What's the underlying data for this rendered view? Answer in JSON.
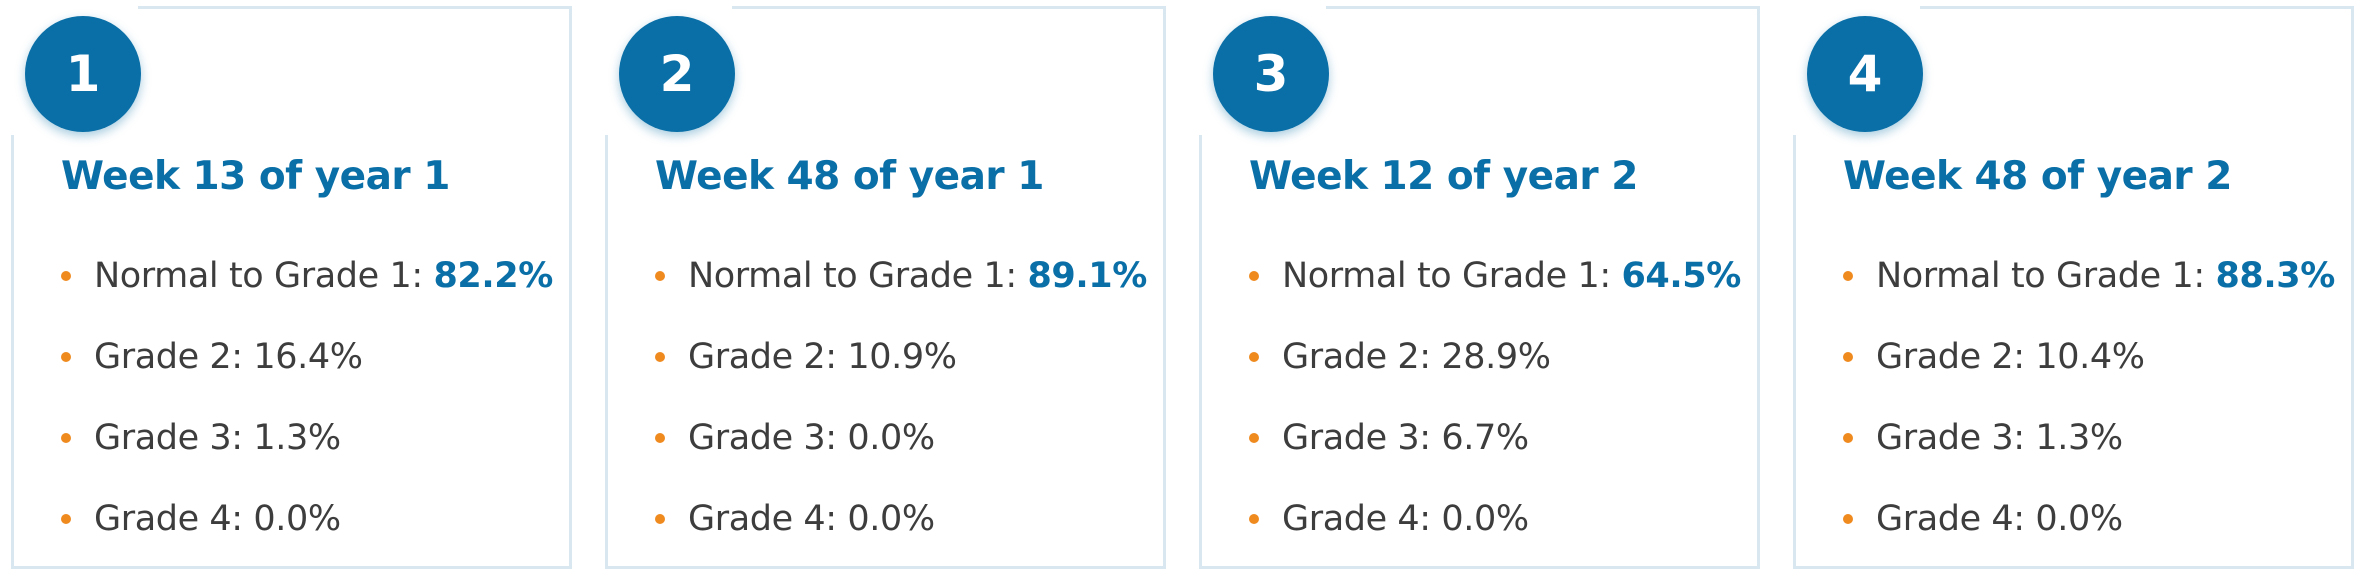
{
  "colors": {
    "accent_blue": "#0a6fa7",
    "bullet_orange": "#ef8a1f",
    "card_border": "#d8e7f0",
    "text_gray": "#3d3d3d"
  },
  "cards": [
    {
      "number": "1",
      "title": "Week 13 of year 1",
      "items": [
        {
          "label": "Normal to Grade 1: ",
          "value": "82.2%"
        },
        {
          "label": "Grade 2: 16.4%"
        },
        {
          "label": "Grade 3: 1.3%"
        },
        {
          "label": "Grade 4: 0.0%"
        }
      ]
    },
    {
      "number": "2",
      "title": "Week 48 of year 1",
      "items": [
        {
          "label": "Normal to Grade 1: ",
          "value": "89.1%"
        },
        {
          "label": "Grade 2: 10.9%"
        },
        {
          "label": "Grade 3: 0.0%"
        },
        {
          "label": "Grade 4: 0.0%"
        }
      ]
    },
    {
      "number": "3",
      "title": "Week 12 of year 2",
      "items": [
        {
          "label": "Normal to Grade 1: ",
          "value": "64.5%"
        },
        {
          "label": "Grade 2: 28.9%"
        },
        {
          "label": "Grade 3: 6.7%"
        },
        {
          "label": "Grade 4: 0.0%"
        }
      ]
    },
    {
      "number": "4",
      "title": "Week 48 of year 2",
      "items": [
        {
          "label": "Normal to Grade 1: ",
          "value": "88.3%"
        },
        {
          "label": "Grade 2: 10.4%"
        },
        {
          "label": "Grade 3: 1.3%"
        },
        {
          "label": "Grade 4: 0.0%"
        }
      ]
    }
  ]
}
